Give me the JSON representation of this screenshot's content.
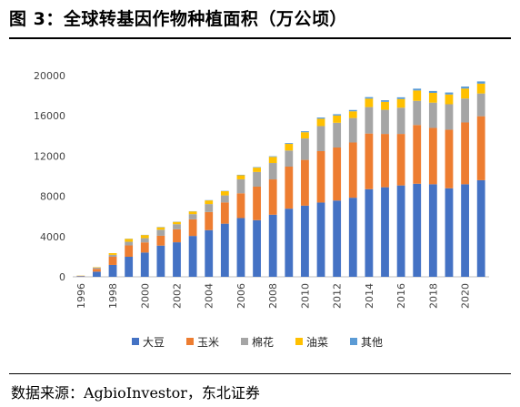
{
  "figure": {
    "title": "图 3：全球转基因作物种植面积（万公顷）",
    "source": "数据来源：AgbioInvestor，东北证券"
  },
  "chart_data": {
    "type": "bar",
    "stacked": true,
    "x": [
      1996,
      1997,
      1998,
      1999,
      2000,
      2001,
      2002,
      2003,
      2004,
      2005,
      2006,
      2007,
      2008,
      2009,
      2010,
      2011,
      2012,
      2013,
      2014,
      2015,
      2016,
      2017,
      2018,
      2019,
      2020,
      2021
    ],
    "x_tick_labels": [
      "1996",
      "1998",
      "2000",
      "2002",
      "2004",
      "2006",
      "2008",
      "2010",
      "2012",
      "2014",
      "2016",
      "2018",
      "2020"
    ],
    "ylim": [
      0,
      20000
    ],
    "y_ticks": [
      0,
      4000,
      8000,
      12000,
      16000,
      20000
    ],
    "grid": false,
    "legend_position": "bottom",
    "series": [
      {
        "name": "大豆",
        "color": "#4472C4",
        "values": [
          50,
          510,
          1180,
          1990,
          2410,
          3100,
          3430,
          4060,
          4640,
          5280,
          5840,
          5630,
          6170,
          6770,
          7070,
          7380,
          7580,
          7860,
          8710,
          8900,
          9080,
          9250,
          9200,
          8800,
          9200,
          9600
        ]
      },
      {
        "name": "玉米",
        "color": "#ED7D31",
        "values": [
          30,
          280,
          810,
          1130,
          1010,
          980,
          1290,
          1650,
          1800,
          2110,
          2460,
          3330,
          3510,
          4180,
          4550,
          5110,
          5270,
          5490,
          5530,
          5300,
          5120,
          5840,
          5600,
          5820,
          6140,
          6360
        ]
      },
      {
        "name": "棉花",
        "color": "#A5A5A5",
        "values": [
          20,
          120,
          190,
          360,
          420,
          600,
          510,
          520,
          790,
          700,
          1390,
          1460,
          1630,
          1600,
          2130,
          2490,
          2460,
          2430,
          2630,
          2400,
          2610,
          2400,
          2510,
          2530,
          2380,
          2260
        ]
      },
      {
        "name": "油菜",
        "color": "#FFC000",
        "values": [
          20,
          40,
          170,
          290,
          310,
          240,
          230,
          270,
          360,
          420,
          410,
          430,
          610,
          660,
          620,
          730,
          720,
          670,
          840,
          790,
          860,
          1030,
          970,
          970,
          990,
          980
        ]
      },
      {
        "name": "其他",
        "color": "#5B9BD5",
        "values": [
          0,
          0,
          0,
          20,
          20,
          30,
          20,
          20,
          30,
          30,
          40,
          50,
          60,
          80,
          100,
          120,
          130,
          130,
          150,
          160,
          170,
          180,
          190,
          200,
          200,
          220
        ]
      }
    ]
  }
}
